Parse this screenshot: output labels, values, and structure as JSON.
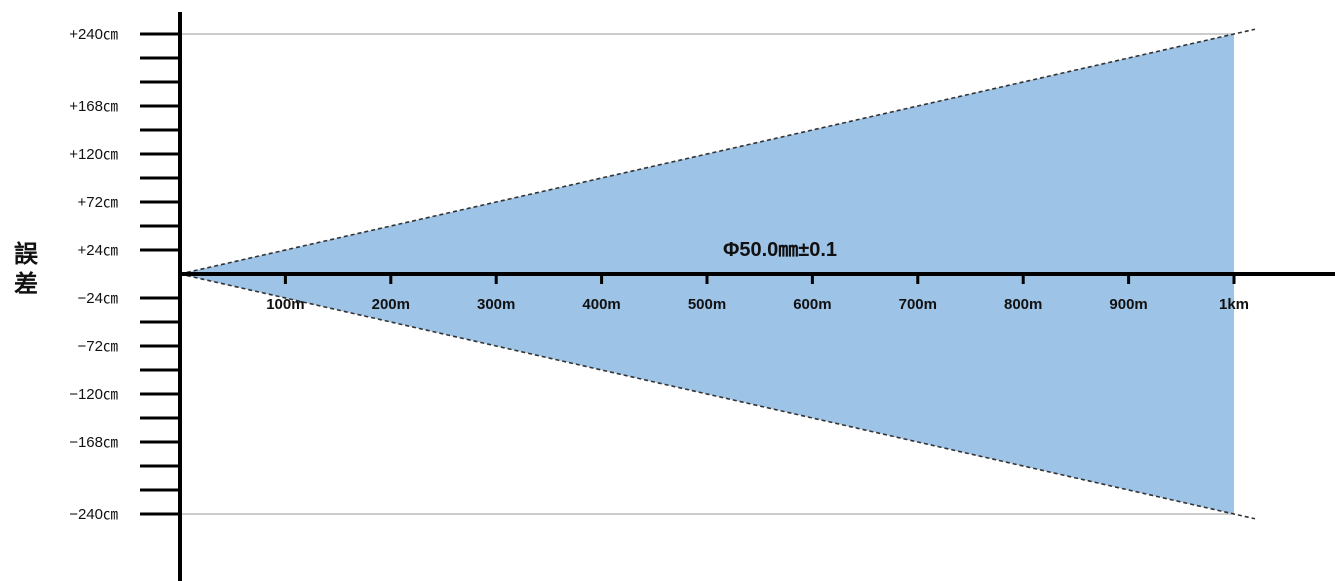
{
  "chart_data": {
    "type": "area",
    "title": "",
    "annotation": "Φ50.0㎜±0.1",
    "ylabel": "誤差",
    "xlabel": "",
    "x_ticks": [
      "100m",
      "200m",
      "300m",
      "400m",
      "500m",
      "600m",
      "700m",
      "800m",
      "900m",
      "1km"
    ],
    "x_range_m": [
      0,
      1000
    ],
    "y_ticks": [
      {
        "value": 240,
        "label": "+240㎝"
      },
      {
        "value": 168,
        "label": "+168㎝"
      },
      {
        "value": 120,
        "label": "+120㎝"
      },
      {
        "value": 72,
        "label": "+72㎝"
      },
      {
        "value": 24,
        "label": "+24㎝"
      },
      {
        "value": -24,
        "label": "−24㎝"
      },
      {
        "value": -72,
        "label": "−72㎝"
      },
      {
        "value": -120,
        "label": "−120㎝"
      },
      {
        "value": -168,
        "label": "−168㎝"
      },
      {
        "value": -240,
        "label": "−240㎝"
      }
    ],
    "y_range_cm": [
      -240,
      240
    ],
    "series": [
      {
        "x": [
          0,
          1000
        ],
        "upper": [
          0,
          240
        ],
        "lower": [
          0,
          -240
        ]
      }
    ],
    "fill_color": "#9dc3e6",
    "boundary_style": "dashed",
    "reference_lines_at": [
      240,
      -240
    ],
    "grid": false,
    "legend": "none"
  }
}
